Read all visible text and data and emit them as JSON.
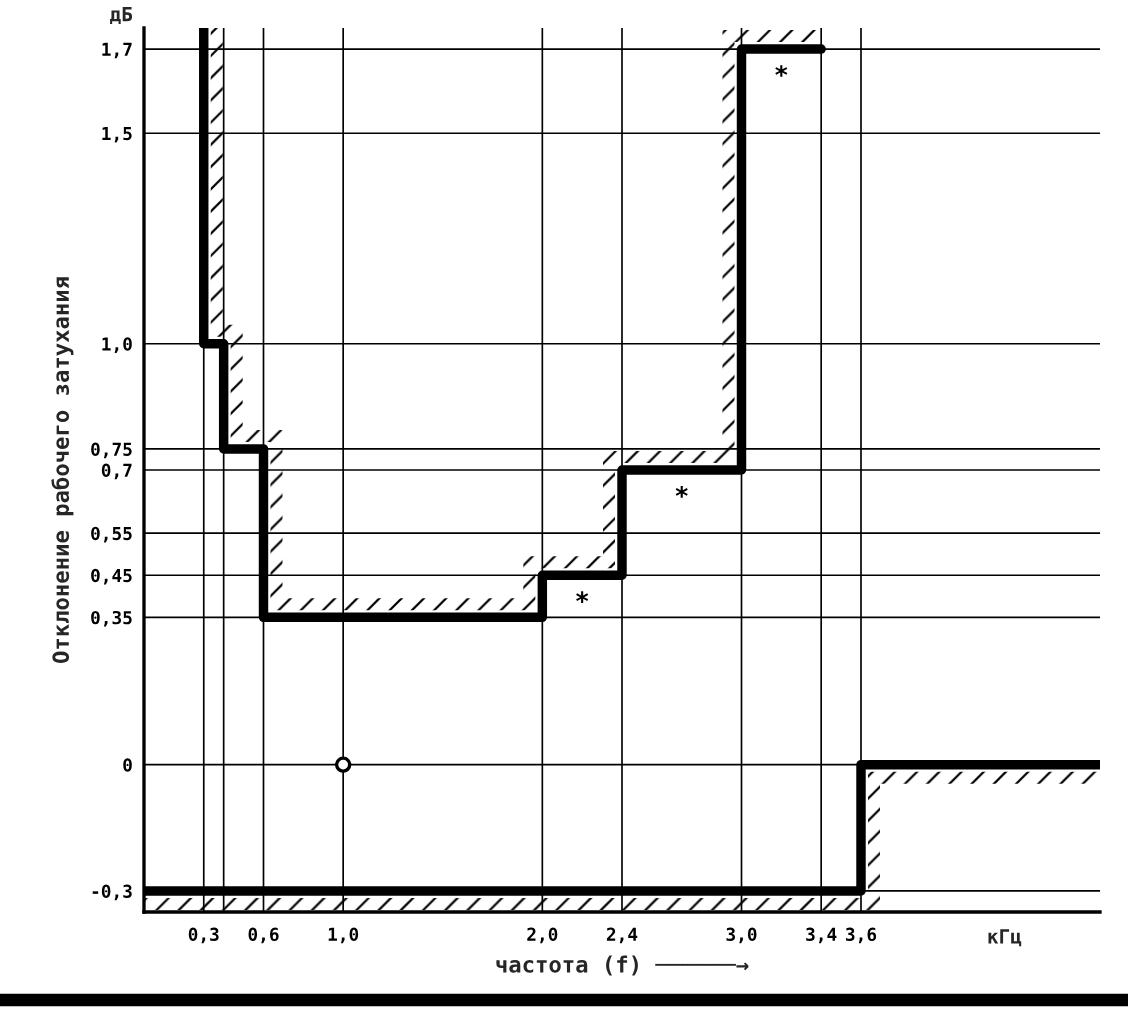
{
  "chart_data": {
    "type": "step",
    "xlabel": "частота (f) ──────→",
    "ylabel": "Отклонение рабочего затухания",
    "annotations": [
      "дБ",
      "кГц",
      {
        "text": "*",
        "x": 2.2,
        "y": 0.45
      },
      {
        "text": "*",
        "x": 2.7,
        "y": 0.7
      },
      {
        "text": "*",
        "x": 3.2,
        "y": 1.7
      }
    ],
    "xlim": [
      0,
      4.8
    ],
    "xticks": [
      {
        "value": 0.3,
        "label": "0,3"
      },
      {
        "value": 0.4,
        "label": null
      },
      {
        "value": 0.6,
        "label": "0,6"
      },
      {
        "value": 1.0,
        "label": "1,0"
      },
      {
        "value": 2.0,
        "label": "2,0"
      },
      {
        "value": 2.4,
        "label": "2,4"
      },
      {
        "value": 3.0,
        "label": "3,0"
      },
      {
        "value": 3.4,
        "label": "3,4"
      },
      {
        "value": 3.6,
        "label": "3,6"
      }
    ],
    "ylim": [
      -0.35,
      1.75
    ],
    "yticks": [
      {
        "value": -0.3,
        "label": "-0,3"
      },
      0,
      {
        "value": 0.35,
        "label": "0,35"
      },
      {
        "value": 0.45,
        "label": "0,45"
      },
      {
        "value": 0.55,
        "label": "0,55"
      },
      {
        "value": 0.7,
        "label": "0,7"
      },
      {
        "value": 0.75,
        "label": "0,75"
      },
      {
        "value": 1.0,
        "label": "1,0"
      },
      {
        "value": 1.5,
        "label": "1,5"
      },
      {
        "value": 1.7,
        "label": "1,7"
      }
    ],
    "grid": true,
    "series": [
      {
        "color": "#000000",
        "x": [
          0.3,
          0.3,
          0.4,
          0.6,
          2.0,
          2.4,
          3.0,
          3.4
        ],
        "values": [
          1.75,
          1.0,
          0.75,
          0.35,
          0.45,
          0.7,
          1.7,
          1.7
        ]
      },
      {
        "color": "#000000",
        "x": [
          0,
          3.6,
          4.8
        ],
        "values": [
          -0.3,
          0,
          0
        ]
      },
      {
        "type": "scatter",
        "color": "#000000",
        "marker": "circle",
        "x": [
          1.0
        ],
        "values": [
          0
        ]
      }
    ]
  }
}
